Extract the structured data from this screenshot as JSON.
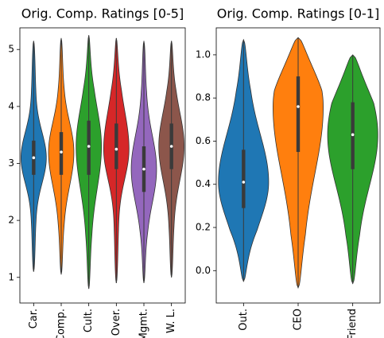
{
  "chart_data": [
    {
      "type": "violin",
      "title": "Orig. Comp. Ratings [0-5]",
      "categories": [
        "Car.",
        "Comp.",
        "Cult.",
        "Over.",
        "Mgmt.",
        "W. L."
      ],
      "colors": [
        "#1f77b4",
        "#ff7f0e",
        "#2ca02c",
        "#d62728",
        "#9467bd",
        "#8c564b"
      ],
      "violins": [
        {
          "min": 1.1,
          "q1": 2.8,
          "median": 3.1,
          "q3": 3.4,
          "max": 5.15
        },
        {
          "min": 1.05,
          "q1": 2.8,
          "median": 3.2,
          "q3": 3.55,
          "max": 5.2
        },
        {
          "min": 0.8,
          "q1": 2.8,
          "median": 3.3,
          "q3": 3.75,
          "max": 5.25
        },
        {
          "min": 0.9,
          "q1": 2.9,
          "median": 3.25,
          "q3": 3.7,
          "max": 5.2
        },
        {
          "min": 0.9,
          "q1": 2.5,
          "median": 2.9,
          "q3": 3.3,
          "max": 5.15
        },
        {
          "min": 1.0,
          "q1": 2.9,
          "median": 3.3,
          "q3": 3.7,
          "max": 5.15
        }
      ],
      "ylim": [
        0.55,
        5.38
      ],
      "yticks": [
        1,
        2,
        3,
        4,
        5
      ]
    },
    {
      "type": "violin",
      "title": "Orig. Comp. Ratings [0-1]",
      "categories": [
        "Out.",
        "CEO",
        "Friend"
      ],
      "colors": [
        "#1f77b4",
        "#ff7f0e",
        "#2ca02c"
      ],
      "violins": [
        {
          "min": -0.05,
          "q1": 0.29,
          "median": 0.41,
          "q3": 0.56,
          "max": 1.07
        },
        {
          "min": -0.08,
          "q1": 0.55,
          "median": 0.76,
          "q3": 0.9,
          "max": 1.08
        },
        {
          "min": -0.06,
          "q1": 0.47,
          "median": 0.63,
          "q3": 0.78,
          "max": 1.0
        }
      ],
      "ylim": [
        -0.15,
        1.125
      ],
      "yticks": [
        {
          "value": 0,
          "label": "0.0"
        },
        0.2,
        0.4,
        0.6,
        0.8,
        {
          "value": 1,
          "label": "1.0"
        }
      ]
    }
  ]
}
